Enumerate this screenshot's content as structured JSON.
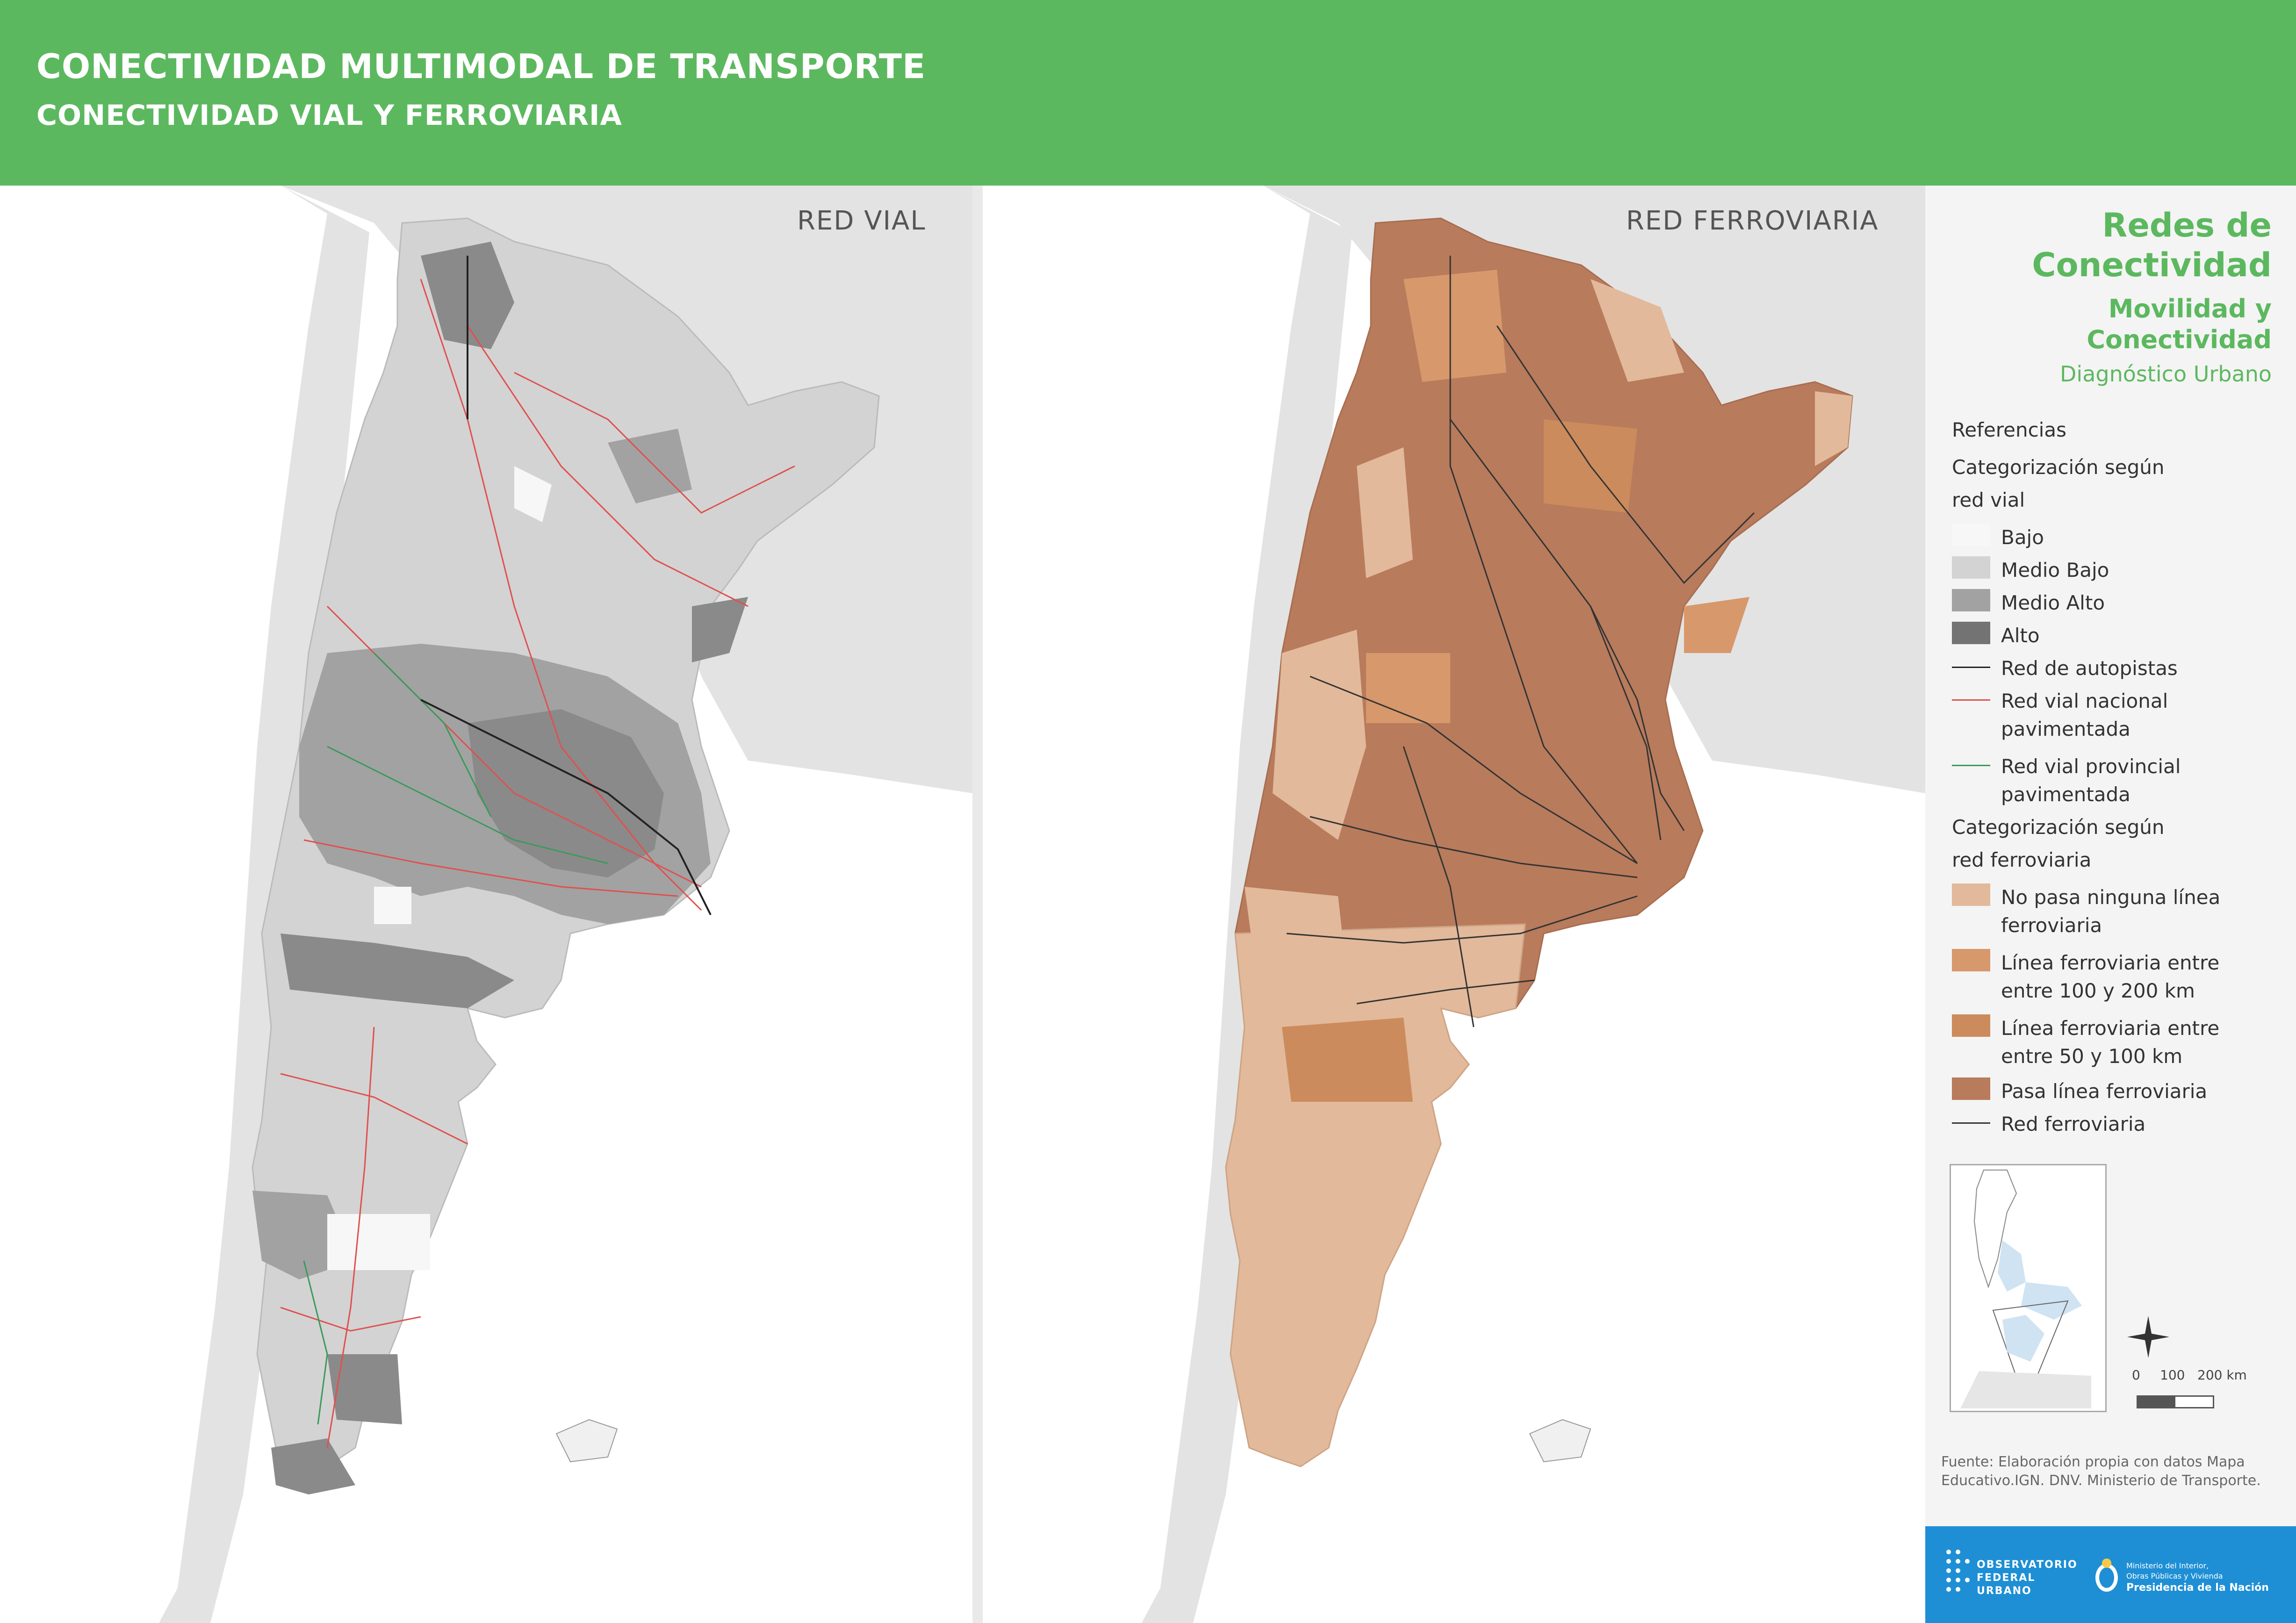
{
  "header": {
    "title": "CONECTIVIDAD MULTIMODAL DE TRANSPORTE",
    "subtitle": "CONECTIVIDAD VIAL Y FERROVIARIA"
  },
  "maps": {
    "left_title": "RED VIAL",
    "right_title": "RED FERROVIARIA"
  },
  "sidebar": {
    "title_line1": "Redes de",
    "title_line2": "Conectividad",
    "sub_line1": "Movilidad y",
    "sub_line2": "Conectividad",
    "sub_line3": "Diagnóstico Urbano"
  },
  "legend": {
    "referencias": "Referencias",
    "vial_head_1": "Categorización según",
    "vial_head_2": "red vial",
    "vial_items": [
      {
        "label": "Bajo",
        "color": "#f7f7f7"
      },
      {
        "label": "Medio Bajo",
        "color": "#d3d3d3"
      },
      {
        "label": "Medio Alto",
        "color": "#a2a2a2"
      },
      {
        "label": "Alto",
        "color": "#737373"
      }
    ],
    "lines": [
      {
        "label": "Red de autopistas",
        "label2": "",
        "color": "#222222"
      },
      {
        "label": "Red vial nacional",
        "label2": "pavimentada",
        "color": "#e0504e"
      },
      {
        "label": "Red vial provincial",
        "label2": "pavimentada",
        "color": "#3a9a5a"
      }
    ],
    "ferro_head_1": "Categorización según",
    "ferro_head_2": "red ferroviaria",
    "ferro_items": [
      {
        "label": "No pasa ninguna línea",
        "label2": "ferroviaria",
        "color": "#e2b99b"
      },
      {
        "label": "Línea ferroviaria entre",
        "label2": "entre 100 y 200 km",
        "color": "#d7986b"
      },
      {
        "label": "Línea ferroviaria entre",
        "label2": "entre 50 y 100 km",
        "color": "#cc8b5c"
      },
      {
        "label": "Pasa línea ferroviaria",
        "label2": "",
        "color": "#b87b5c"
      }
    ],
    "ferro_line": {
      "label": "Red ferroviaria",
      "color": "#333333"
    }
  },
  "scale": {
    "s0": "0",
    "s1": "100",
    "s2": "200 km"
  },
  "source": "Fuente: Elaboración propia con datos Mapa Educativo.IGN. DNV. Ministerio de Transporte.",
  "footer": {
    "obs_1": "OBSERVATORIO",
    "obs_2": "FEDERAL",
    "obs_3": "URBANO",
    "min_1": "Ministerio del Interior,",
    "min_2": "Obras Públicas y Vivienda",
    "min_3": "Presidencia de la Nación"
  },
  "colors": {
    "header_green": "#5cb85f",
    "land_grey": "#e3e3e3",
    "footer_blue": "#1e8fd5"
  }
}
